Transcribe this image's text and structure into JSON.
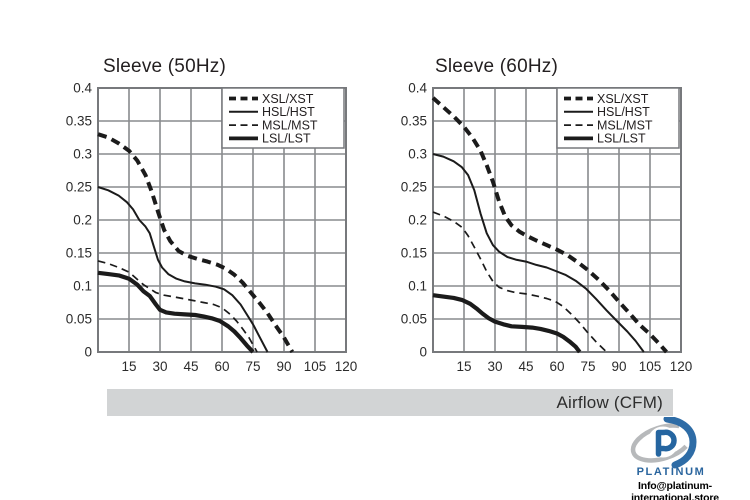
{
  "colors": {
    "grid": "#898b8e",
    "border": "#77797c",
    "curve": "#1b1b1b",
    "legend_bg": "#ffffff",
    "bar_bg": "#d2d4d5",
    "logo_blue": "#2e6ca6",
    "logo_dark_blue": "#2a659e",
    "swirl_gray": "#b7b9bb",
    "text": "#2b2b2b"
  },
  "airflow_bar": {
    "label": "Airflow (CFM)"
  },
  "logo": {
    "brand": "PLATINUM",
    "email": "Info@platinum-international.store",
    "icon": "platinum-p-swirl"
  },
  "chart_data": [
    {
      "type": "line",
      "title": "Sleeve (50Hz)",
      "xlabel": "Airflow (CFM)",
      "ylabel": "",
      "xlim": [
        0,
        120
      ],
      "ylim": [
        0,
        0.4
      ],
      "grid": true,
      "legend_position": "top-right",
      "x_ticks": [
        15,
        30,
        45,
        60,
        75,
        90,
        105,
        120
      ],
      "y_ticks": [
        0,
        0.05,
        0.1,
        0.15,
        0.2,
        0.25,
        0.3,
        0.35,
        0.4
      ],
      "y_tick_labels": [
        "0",
        "0.05",
        "0.1",
        "0.15",
        "0.2",
        "0.25",
        "0.3",
        "0.35",
        "0.4"
      ],
      "series": [
        {
          "name": "XSL/XST",
          "style": "thick-dashed",
          "points": [
            [
              0,
              0.33
            ],
            [
              5,
              0.325
            ],
            [
              10,
              0.316
            ],
            [
              15,
              0.305
            ],
            [
              19,
              0.29
            ],
            [
              23,
              0.268
            ],
            [
              26,
              0.243
            ],
            [
              29,
              0.213
            ],
            [
              32,
              0.185
            ],
            [
              35,
              0.168
            ],
            [
              39,
              0.153
            ],
            [
              43,
              0.146
            ],
            [
              48,
              0.141
            ],
            [
              53,
              0.137
            ],
            [
              58,
              0.132
            ],
            [
              62,
              0.126
            ],
            [
              66,
              0.117
            ],
            [
              70,
              0.105
            ],
            [
              74,
              0.09
            ],
            [
              78,
              0.075
            ],
            [
              82,
              0.059
            ],
            [
              86,
              0.04
            ],
            [
              90,
              0.022
            ],
            [
              94,
              0
            ]
          ]
        },
        {
          "name": "HSL/HST",
          "style": "thin-solid",
          "points": [
            [
              0,
              0.25
            ],
            [
              5,
              0.245
            ],
            [
              10,
              0.237
            ],
            [
              14,
              0.227
            ],
            [
              17,
              0.216
            ],
            [
              20,
              0.2
            ],
            [
              23,
              0.19
            ],
            [
              25,
              0.18
            ],
            [
              27,
              0.16
            ],
            [
              29,
              0.14
            ],
            [
              31,
              0.128
            ],
            [
              34,
              0.118
            ],
            [
              38,
              0.111
            ],
            [
              42,
              0.107
            ],
            [
              47,
              0.104
            ],
            [
              52,
              0.102
            ],
            [
              57,
              0.099
            ],
            [
              61,
              0.095
            ],
            [
              65,
              0.086
            ],
            [
              69,
              0.072
            ],
            [
              72,
              0.057
            ],
            [
              75,
              0.042
            ],
            [
              78,
              0.024
            ],
            [
              82,
              0
            ]
          ]
        },
        {
          "name": "MSL/MST",
          "style": "thin-dashed",
          "points": [
            [
              0,
              0.138
            ],
            [
              5,
              0.134
            ],
            [
              10,
              0.128
            ],
            [
              15,
              0.121
            ],
            [
              19,
              0.11
            ],
            [
              22,
              0.102
            ],
            [
              25,
              0.096
            ],
            [
              28,
              0.09
            ],
            [
              32,
              0.086
            ],
            [
              36,
              0.084
            ],
            [
              41,
              0.081
            ],
            [
              46,
              0.078
            ],
            [
              51,
              0.075
            ],
            [
              56,
              0.072
            ],
            [
              60,
              0.067
            ],
            [
              64,
              0.057
            ],
            [
              67,
              0.047
            ],
            [
              70,
              0.035
            ],
            [
              73,
              0.022
            ],
            [
              77,
              0
            ]
          ]
        },
        {
          "name": "LSL/LST",
          "style": "thick-solid",
          "points": [
            [
              0,
              0.12
            ],
            [
              5,
              0.118
            ],
            [
              10,
              0.116
            ],
            [
              15,
              0.111
            ],
            [
              19,
              0.102
            ],
            [
              22,
              0.092
            ],
            [
              25,
              0.085
            ],
            [
              28,
              0.072
            ],
            [
              30,
              0.064
            ],
            [
              33,
              0.06
            ],
            [
              37,
              0.058
            ],
            [
              42,
              0.057
            ],
            [
              47,
              0.056
            ],
            [
              51,
              0.054
            ],
            [
              55,
              0.051
            ],
            [
              59,
              0.047
            ],
            [
              63,
              0.039
            ],
            [
              66,
              0.031
            ],
            [
              69,
              0.021
            ],
            [
              72,
              0.01
            ],
            [
              75,
              0
            ]
          ]
        }
      ]
    },
    {
      "type": "line",
      "title": "Sleeve (60Hz)",
      "xlabel": "Airflow (CFM)",
      "ylabel": "",
      "xlim": [
        0,
        120
      ],
      "ylim": [
        0,
        0.4
      ],
      "grid": true,
      "legend_position": "top-right",
      "x_ticks": [
        15,
        30,
        45,
        60,
        75,
        90,
        105,
        120
      ],
      "y_ticks": [
        0,
        0.05,
        0.1,
        0.15,
        0.2,
        0.25,
        0.3,
        0.35,
        0.4
      ],
      "y_tick_labels": [
        "0",
        "0.05",
        "0.1",
        "0.15",
        "0.2",
        "0.25",
        "0.3",
        "0.35",
        "0.4"
      ],
      "series": [
        {
          "name": "XSL/XST",
          "style": "thick-dashed",
          "points": [
            [
              0,
              0.385
            ],
            [
              5,
              0.371
            ],
            [
              10,
              0.357
            ],
            [
              15,
              0.341
            ],
            [
              19,
              0.325
            ],
            [
              23,
              0.305
            ],
            [
              26,
              0.283
            ],
            [
              29,
              0.258
            ],
            [
              32,
              0.228
            ],
            [
              35,
              0.205
            ],
            [
              38,
              0.192
            ],
            [
              42,
              0.182
            ],
            [
              46,
              0.175
            ],
            [
              50,
              0.169
            ],
            [
              55,
              0.162
            ],
            [
              60,
              0.155
            ],
            [
              65,
              0.147
            ],
            [
              70,
              0.136
            ],
            [
              75,
              0.124
            ],
            [
              80,
              0.11
            ],
            [
              85,
              0.094
            ],
            [
              90,
              0.076
            ],
            [
              95,
              0.059
            ],
            [
              100,
              0.041
            ],
            [
              105,
              0.027
            ],
            [
              109,
              0.014
            ],
            [
              113,
              0
            ]
          ]
        },
        {
          "name": "HSL/HST",
          "style": "thin-solid",
          "points": [
            [
              0,
              0.3
            ],
            [
              5,
              0.296
            ],
            [
              10,
              0.289
            ],
            [
              14,
              0.28
            ],
            [
              17,
              0.268
            ],
            [
              20,
              0.245
            ],
            [
              23,
              0.21
            ],
            [
              26,
              0.18
            ],
            [
              29,
              0.162
            ],
            [
              32,
              0.152
            ],
            [
              36,
              0.144
            ],
            [
              40,
              0.14
            ],
            [
              45,
              0.137
            ],
            [
              50,
              0.132
            ],
            [
              55,
              0.128
            ],
            [
              60,
              0.122
            ],
            [
              64,
              0.117
            ],
            [
              69,
              0.108
            ],
            [
              74,
              0.096
            ],
            [
              79,
              0.08
            ],
            [
              84,
              0.063
            ],
            [
              89,
              0.047
            ],
            [
              94,
              0.031
            ],
            [
              98,
              0.017
            ],
            [
              102,
              0
            ]
          ]
        },
        {
          "name": "MSL/MST",
          "style": "thin-dashed",
          "points": [
            [
              0,
              0.212
            ],
            [
              5,
              0.206
            ],
            [
              10,
              0.198
            ],
            [
              14,
              0.189
            ],
            [
              17,
              0.176
            ],
            [
              20,
              0.159
            ],
            [
              23,
              0.141
            ],
            [
              26,
              0.122
            ],
            [
              29,
              0.107
            ],
            [
              32,
              0.098
            ],
            [
              36,
              0.093
            ],
            [
              40,
              0.09
            ],
            [
              45,
              0.088
            ],
            [
              50,
              0.085
            ],
            [
              55,
              0.081
            ],
            [
              59,
              0.077
            ],
            [
              63,
              0.069
            ],
            [
              67,
              0.057
            ],
            [
              71,
              0.044
            ],
            [
              75,
              0.029
            ],
            [
              79,
              0.015
            ],
            [
              84,
              0
            ]
          ]
        },
        {
          "name": "LSL/LST",
          "style": "thick-solid",
          "points": [
            [
              0,
              0.086
            ],
            [
              5,
              0.084
            ],
            [
              10,
              0.082
            ],
            [
              14,
              0.079
            ],
            [
              18,
              0.073
            ],
            [
              21,
              0.066
            ],
            [
              24,
              0.058
            ],
            [
              27,
              0.051
            ],
            [
              30,
              0.046
            ],
            [
              34,
              0.042
            ],
            [
              38,
              0.039
            ],
            [
              43,
              0.038
            ],
            [
              48,
              0.037
            ],
            [
              52,
              0.035
            ],
            [
              56,
              0.032
            ],
            [
              60,
              0.028
            ],
            [
              63,
              0.023
            ],
            [
              66,
              0.016
            ],
            [
              69,
              0.008
            ],
            [
              71,
              0
            ]
          ]
        }
      ]
    }
  ]
}
